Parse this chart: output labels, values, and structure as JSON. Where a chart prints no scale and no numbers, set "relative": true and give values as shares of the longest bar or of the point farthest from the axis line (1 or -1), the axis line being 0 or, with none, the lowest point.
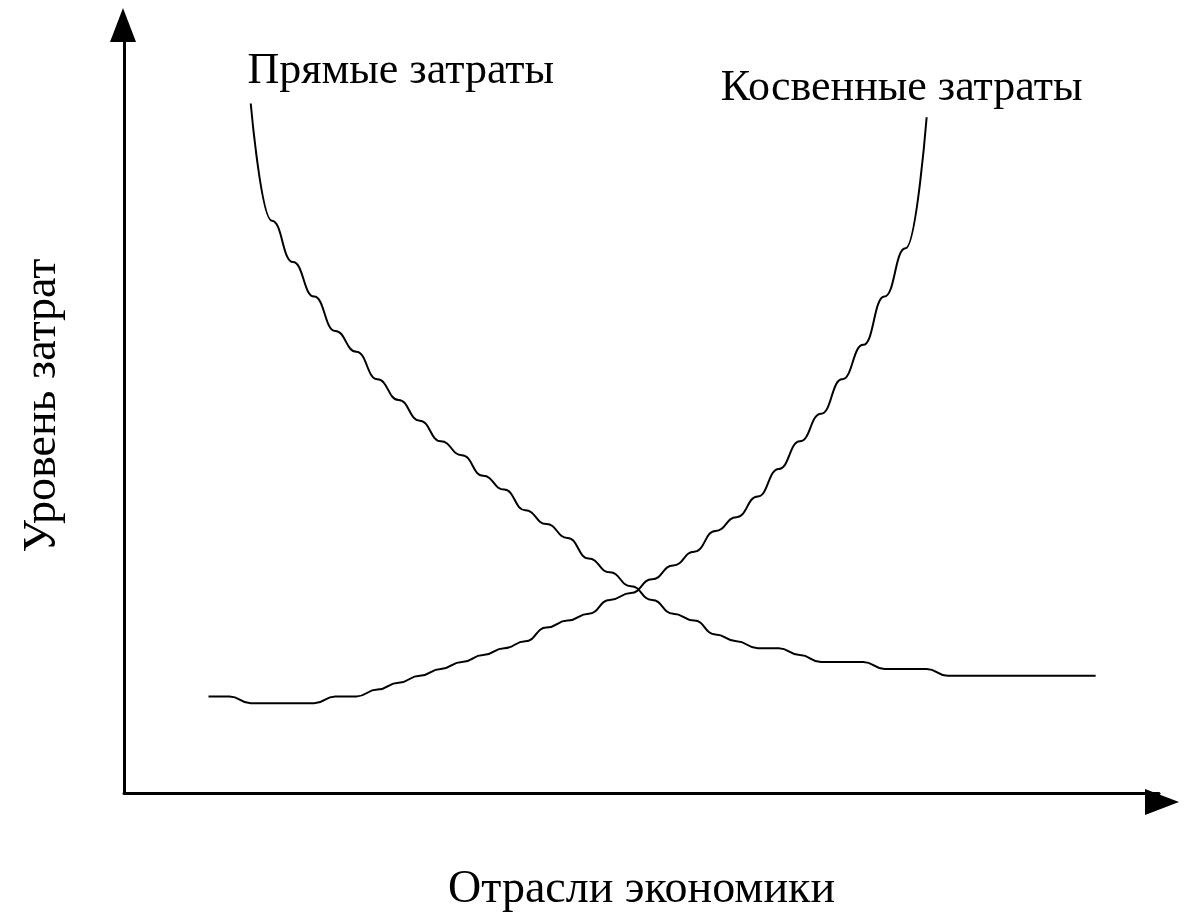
{
  "chart_data": {
    "type": "line",
    "relative": true,
    "xlabel": "Отрасли экономики",
    "ylabel": "Уровень затрат",
    "marker": "none",
    "line_style": "solid",
    "categories": [
      null,
      null,
      null,
      null,
      null,
      null,
      null,
      null,
      null,
      null,
      null,
      null,
      null,
      null,
      null,
      null,
      null,
      null,
      null,
      null,
      null,
      null,
      null,
      null,
      null,
      null,
      null,
      null,
      null,
      null,
      null,
      null,
      null,
      null,
      null,
      null,
      null,
      null,
      null,
      null,
      null,
      null,
      null,
      null,
      null,
      null,
      null,
      null,
      null,
      null
    ],
    "series": [
      {
        "name": "Прямые затраты",
        "color": "#000000",
        "values": [
          null,
          null,
          null,
          null,
          null,
          null,
          1.0,
          0.83,
          0.77,
          0.72,
          0.67,
          0.64,
          0.6,
          0.57,
          0.54,
          0.51,
          0.49,
          0.46,
          0.44,
          0.41,
          0.39,
          0.37,
          0.34,
          0.32,
          0.3,
          0.28,
          0.26,
          0.25,
          0.23,
          0.22,
          0.21,
          0.21,
          0.2,
          0.19,
          0.19,
          0.19,
          0.18,
          0.18,
          0.18,
          0.17,
          0.17,
          0.17,
          0.17,
          0.17,
          0.17,
          0.17,
          0.17,
          null,
          null,
          null
        ]
      },
      {
        "name": "Косвенные затраты",
        "color": "#000000",
        "values": [
          null,
          null,
          null,
          null,
          0.14,
          0.14,
          0.13,
          0.13,
          0.13,
          0.13,
          0.14,
          0.14,
          0.15,
          0.16,
          0.17,
          0.18,
          0.19,
          0.2,
          0.21,
          0.22,
          0.24,
          0.25,
          0.26,
          0.28,
          0.29,
          0.31,
          0.33,
          0.35,
          0.38,
          0.4,
          0.43,
          0.47,
          0.51,
          0.55,
          0.6,
          0.65,
          0.72,
          0.79,
          0.98,
          null,
          null,
          null,
          null,
          null,
          null,
          null,
          null,
          null,
          null,
          null
        ]
      }
    ]
  }
}
